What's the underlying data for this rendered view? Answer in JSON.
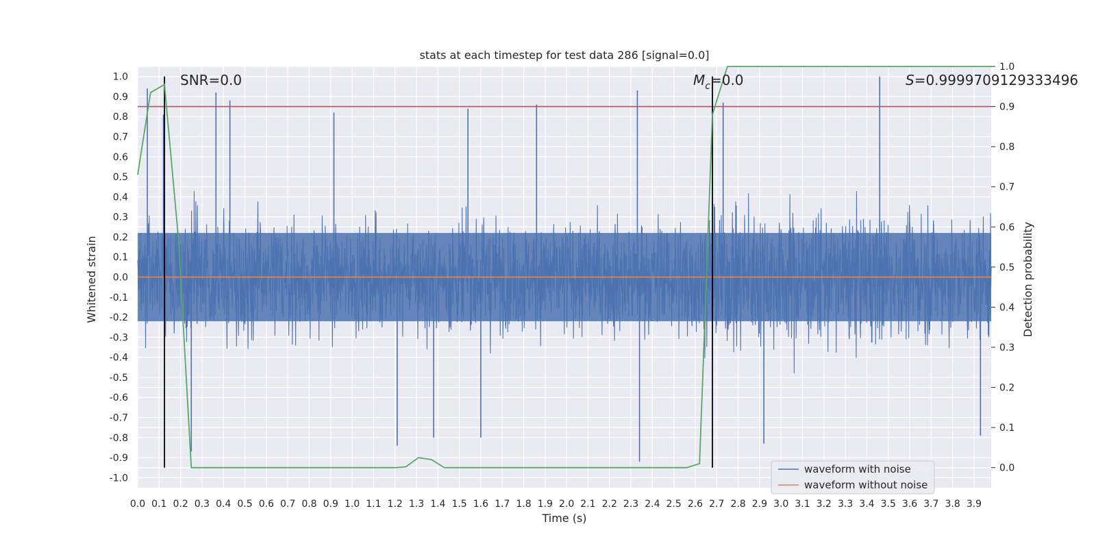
{
  "chart_data": {
    "type": "line",
    "title": "stats at each timestep for test data 286 [signal=0.0]",
    "xlabel": "Time (s)",
    "ylabel_left": "Whitened strain",
    "ylabel_right": "Detection probability",
    "xlim": [
      0.0,
      3.98
    ],
    "ylim_left": [
      -1.05,
      1.05
    ],
    "ylim_right": [
      -0.05,
      1.0
    ],
    "x_ticks": [
      "0.0",
      "0.1",
      "0.2",
      "0.3",
      "0.4",
      "0.5",
      "0.6",
      "0.7",
      "0.8",
      "0.9",
      "1.0",
      "1.1",
      "1.2",
      "1.3",
      "1.4",
      "1.5",
      "1.6",
      "1.7",
      "1.8",
      "1.9",
      "2.0",
      "2.1",
      "2.2",
      "2.3",
      "2.4",
      "2.5",
      "2.6",
      "2.7",
      "2.8",
      "2.9",
      "3.0",
      "3.1",
      "3.2",
      "3.3",
      "3.4",
      "3.5",
      "3.6",
      "3.7",
      "3.8",
      "3.9"
    ],
    "y_ticks_left": [
      "1.0",
      "0.9",
      "0.8",
      "0.7",
      "0.6",
      "0.5",
      "0.4",
      "0.3",
      "0.2",
      "0.1",
      "0.0",
      "-0.1",
      "-0.2",
      "-0.3",
      "-0.4",
      "-0.5",
      "-0.6",
      "-0.7",
      "-0.8",
      "-0.9",
      "-1.0"
    ],
    "y_ticks_right": [
      "1.0",
      "0.9",
      "0.8",
      "0.7",
      "0.6",
      "0.5",
      "0.4",
      "0.3",
      "0.2",
      "0.1",
      "0.0"
    ],
    "grid": true,
    "legend_position": "bottom-right",
    "annotations": {
      "snr": "SNR=0.0",
      "mc_symbol": "M",
      "mc_sub": "c",
      "mc_value": "=0.0",
      "s_symbol": "S",
      "s_value": "=0.9999709129333496"
    },
    "threshold_line": {
      "axis": "right",
      "value": 0.9,
      "color": "#c44e52"
    },
    "vertical_lines": [
      0.125,
      2.68
    ],
    "noise_profile": [
      [
        0.0,
        0.55
      ],
      [
        0.3,
        0.65
      ],
      [
        1.0,
        0.55
      ],
      [
        2.0,
        0.58
      ],
      [
        2.6,
        0.6
      ],
      [
        2.7,
        0.75
      ],
      [
        3.98,
        0.6
      ]
    ],
    "noise_spikes": [
      {
        "x": 0.045,
        "y": 0.94
      },
      {
        "x": 0.12,
        "y": 0.81
      },
      {
        "x": 0.365,
        "y": 0.92
      },
      {
        "x": 0.43,
        "y": 0.88
      },
      {
        "x": 0.915,
        "y": 0.82
      },
      {
        "x": 1.54,
        "y": 0.84
      },
      {
        "x": 1.86,
        "y": 0.86
      },
      {
        "x": 2.33,
        "y": 0.93
      },
      {
        "x": 2.34,
        "y": -0.92
      },
      {
        "x": 2.73,
        "y": 0.87
      },
      {
        "x": 3.46,
        "y": 1.0
      },
      {
        "x": 0.25,
        "y": -0.87
      },
      {
        "x": 1.21,
        "y": -0.84
      },
      {
        "x": 1.38,
        "y": -0.8
      },
      {
        "x": 1.6,
        "y": -0.8
      },
      {
        "x": 2.92,
        "y": -0.83
      },
      {
        "x": 3.93,
        "y": -0.79
      }
    ],
    "series": [
      {
        "name": "waveform with noise",
        "axis": "left",
        "color": "#4c72b0",
        "style": "dense-noise"
      },
      {
        "name": "waveform without noise",
        "axis": "left",
        "color": "#dd8452",
        "x": [
          0.0,
          3.98
        ],
        "y": [
          0.0,
          0.0
        ]
      },
      {
        "name": "detection probability",
        "axis": "right",
        "color": "#55a868",
        "x": [
          0.0,
          0.06,
          0.125,
          0.19,
          0.25,
          0.4,
          0.8,
          1.2,
          1.25,
          1.31,
          1.37,
          1.43,
          1.6,
          2.0,
          2.4,
          2.56,
          2.62,
          2.68,
          2.75,
          2.9,
          3.3,
          3.7,
          3.98
        ],
        "y": [
          0.73,
          0.935,
          0.955,
          0.57,
          0.0,
          0.0,
          0.0,
          0.0,
          0.002,
          0.025,
          0.02,
          0.0,
          0.0,
          0.0,
          0.0,
          0.0,
          0.01,
          0.88,
          1.0,
          1.0,
          1.0,
          1.0,
          1.0
        ]
      }
    ],
    "legend": [
      "waveform with noise",
      "waveform without noise"
    ]
  }
}
